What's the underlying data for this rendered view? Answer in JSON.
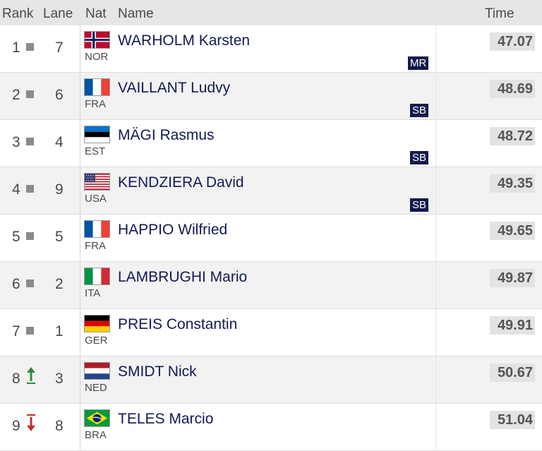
{
  "headers": {
    "rank": "Rank",
    "lane": "Lane",
    "nat": "Nat",
    "name": "Name",
    "time": "Time"
  },
  "colors": {
    "header_bg": "#e6e6e6",
    "name_color": "#121a55",
    "badge_bg": "#141a4a",
    "up_arrow": "#2e8b3a",
    "down_arrow": "#c0302e"
  },
  "rows": [
    {
      "rank": "1",
      "movement": "same",
      "lane": "7",
      "nat": "NOR",
      "name": "WARHOLM Karsten",
      "badge": "MR",
      "time": "47.07"
    },
    {
      "rank": "2",
      "movement": "same",
      "lane": "6",
      "nat": "FRA",
      "name": "VAILLANT Ludvy",
      "badge": "SB",
      "time": "48.69"
    },
    {
      "rank": "3",
      "movement": "same",
      "lane": "4",
      "nat": "EST",
      "name": "MÄGI Rasmus",
      "badge": "SB",
      "time": "48.72"
    },
    {
      "rank": "4",
      "movement": "same",
      "lane": "9",
      "nat": "USA",
      "name": "KENDZIERA David",
      "badge": "SB",
      "time": "49.35"
    },
    {
      "rank": "5",
      "movement": "same",
      "lane": "5",
      "nat": "FRA",
      "name": "HAPPIO Wilfried",
      "badge": "",
      "time": "49.65"
    },
    {
      "rank": "6",
      "movement": "same",
      "lane": "2",
      "nat": "ITA",
      "name": "LAMBRUGHI Mario",
      "badge": "",
      "time": "49.87"
    },
    {
      "rank": "7",
      "movement": "same",
      "lane": "1",
      "nat": "GER",
      "name": "PREIS Constantin",
      "badge": "",
      "time": "49.91"
    },
    {
      "rank": "8",
      "movement": "up",
      "lane": "3",
      "nat": "NED",
      "name": "SMIDT Nick",
      "badge": "",
      "time": "50.67"
    },
    {
      "rank": "9",
      "movement": "down",
      "lane": "8",
      "nat": "BRA",
      "name": "TELES Marcio",
      "badge": "",
      "time": "51.04"
    }
  ]
}
